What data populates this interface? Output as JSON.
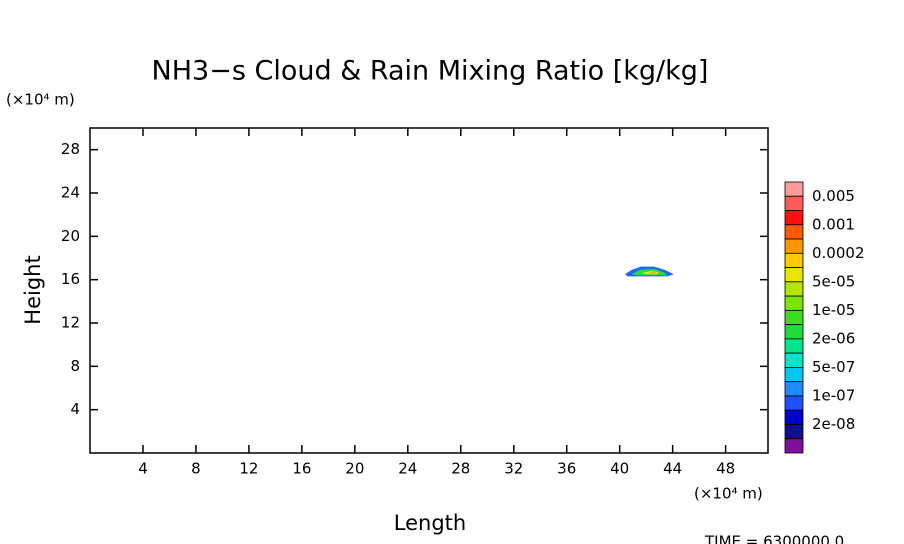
{
  "chart_data": {
    "type": "contour",
    "title": "NH3−s Cloud & Rain Mixing Ratio [kg/kg]",
    "x_label": "Length",
    "y_label": "Height",
    "x_unit": "(×10⁴ m)",
    "y_unit": "(×10⁴ m)",
    "footer": "TIME = 6300000.0",
    "xlim": [
      0,
      51.2
    ],
    "ylim": [
      0,
      30
    ],
    "xticks": [
      4,
      8,
      12,
      16,
      20,
      24,
      28,
      32,
      36,
      40,
      44,
      48
    ],
    "yticks": [
      4,
      8,
      12,
      16,
      20,
      24,
      28
    ],
    "regions": [
      {
        "color": "#1e64ff",
        "x": [
          40.4,
          40.9,
          41.6,
          42.6,
          43.4,
          44.1,
          43.6,
          41.2,
          40.6
        ],
        "y": [
          16.5,
          16.9,
          17.2,
          17.2,
          16.9,
          16.5,
          16.3,
          16.3,
          16.3
        ]
      },
      {
        "color": "#28dc3c",
        "x": [
          40.9,
          41.5,
          42.6,
          43.3,
          43.6,
          41.3
        ],
        "y": [
          16.5,
          16.9,
          17.0,
          16.7,
          16.4,
          16.4
        ]
      },
      {
        "color": "#e6e600",
        "x": [
          41.7,
          42.3,
          43.0,
          42.8,
          42.0
        ],
        "y": [
          16.6,
          16.8,
          16.7,
          16.5,
          16.5
        ]
      },
      {
        "color": "#f0a000",
        "x": [
          42.1,
          42.6,
          42.8,
          42.4
        ],
        "y": [
          16.6,
          16.7,
          16.6,
          16.55
        ]
      }
    ],
    "colorbar": {
      "colors": [
        "#ff9a9a",
        "#ff5a5a",
        "#ff1010",
        "#ff5a00",
        "#ff9600",
        "#ffc800",
        "#e6e600",
        "#b4e600",
        "#78e600",
        "#3cdc1e",
        "#1edc3c",
        "#00e68c",
        "#00e6c8",
        "#00c8f0",
        "#1e8cff",
        "#1e50ff",
        "#0000d0",
        "#10108a",
        "#7f0f9f"
      ],
      "labels": [
        "0.005",
        "0.001",
        "0.0002",
        "5e-05",
        "1e-05",
        "2e-06",
        "5e-07",
        "1e-07",
        "2e-08"
      ]
    }
  }
}
